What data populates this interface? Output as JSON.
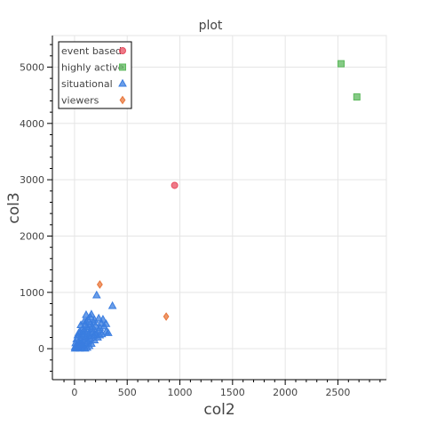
{
  "chart_data": {
    "type": "scatter",
    "title": "plot",
    "xlabel": "col2",
    "ylabel": "col3",
    "xlim": [
      -210,
      2960
    ],
    "ylim": [
      -550,
      5560
    ],
    "xticks": [
      0,
      500,
      1000,
      1500,
      2000,
      2500
    ],
    "yticks": [
      0,
      1000,
      2000,
      3000,
      4000,
      5000
    ],
    "grid": true,
    "legend_position": "top-left",
    "series": [
      {
        "name": "event based",
        "marker": "circle",
        "color": "#e84d60",
        "points": [
          [
            950,
            2900
          ]
        ]
      },
      {
        "name": "highly active",
        "marker": "square",
        "color": "#5cb85c",
        "points": [
          [
            2530,
            5060
          ],
          [
            2680,
            4470
          ]
        ]
      },
      {
        "name": "situational",
        "marker": "triangle",
        "color": "#3a7de0",
        "points": [
          [
            210,
            950
          ],
          [
            360,
            760
          ],
          [
            110,
            600
          ],
          [
            160,
            610
          ],
          [
            230,
            540
          ],
          [
            270,
            520
          ],
          [
            130,
            520
          ],
          [
            90,
            480
          ],
          [
            180,
            470
          ],
          [
            300,
            440
          ],
          [
            150,
            440
          ],
          [
            60,
            420
          ],
          [
            200,
            410
          ],
          [
            120,
            390
          ],
          [
            240,
            370
          ],
          [
            80,
            360
          ],
          [
            160,
            350
          ],
          [
            300,
            300
          ],
          [
            50,
            300
          ],
          [
            100,
            310
          ],
          [
            200,
            300
          ],
          [
            260,
            260
          ],
          [
            140,
            270
          ],
          [
            70,
            260
          ],
          [
            30,
            240
          ],
          [
            180,
            230
          ],
          [
            110,
            220
          ],
          [
            220,
            200
          ],
          [
            60,
            200
          ],
          [
            150,
            180
          ],
          [
            20,
            170
          ],
          [
            90,
            160
          ],
          [
            190,
            150
          ],
          [
            40,
            130
          ],
          [
            130,
            130
          ],
          [
            70,
            110
          ],
          [
            10,
            100
          ],
          [
            110,
            90
          ],
          [
            160,
            90
          ],
          [
            50,
            70
          ],
          [
            20,
            50
          ],
          [
            90,
            50
          ],
          [
            140,
            50
          ],
          [
            5,
            30
          ],
          [
            40,
            30
          ],
          [
            70,
            20
          ],
          [
            120,
            20
          ],
          [
            20,
            10
          ],
          [
            50,
            5
          ],
          [
            100,
            5
          ],
          [
            5,
            5
          ],
          [
            30,
            15
          ],
          [
            80,
            70
          ],
          [
            60,
            140
          ],
          [
            120,
            160
          ],
          [
            170,
            280
          ],
          [
            90,
            240
          ],
          [
            230,
            330
          ],
          [
            200,
            250
          ],
          [
            130,
            340
          ],
          [
            250,
            450
          ],
          [
            100,
            420
          ],
          [
            170,
            390
          ],
          [
            40,
            280
          ],
          [
            80,
            300
          ],
          [
            140,
            220
          ],
          [
            110,
            480
          ],
          [
            190,
            510
          ],
          [
            150,
            560
          ],
          [
            280,
            400
          ],
          [
            320,
            280
          ],
          [
            240,
            240
          ]
        ]
      },
      {
        "name": "viewers",
        "marker": "diamond",
        "color": "#e8763a",
        "points": [
          [
            240,
            1140
          ],
          [
            870,
            570
          ]
        ]
      }
    ]
  }
}
